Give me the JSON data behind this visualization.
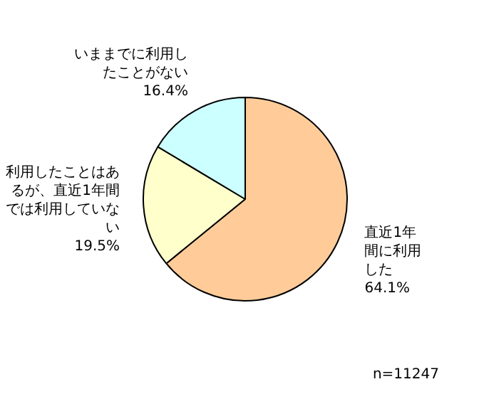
{
  "chart_data": {
    "type": "pie",
    "categories": [
      "直近1年間に利用した",
      "利用したことはあるが、直近1年間では利用していない",
      "いままでに利用したことがない"
    ],
    "values": [
      64.1,
      19.5,
      16.4
    ],
    "value_labels": [
      "64.1%",
      "19.5%",
      "16.4%"
    ],
    "colors": [
      "#ffcc99",
      "#ffffcc",
      "#ccffff"
    ],
    "legend": false,
    "annotations": [
      "n=11247"
    ]
  }
}
